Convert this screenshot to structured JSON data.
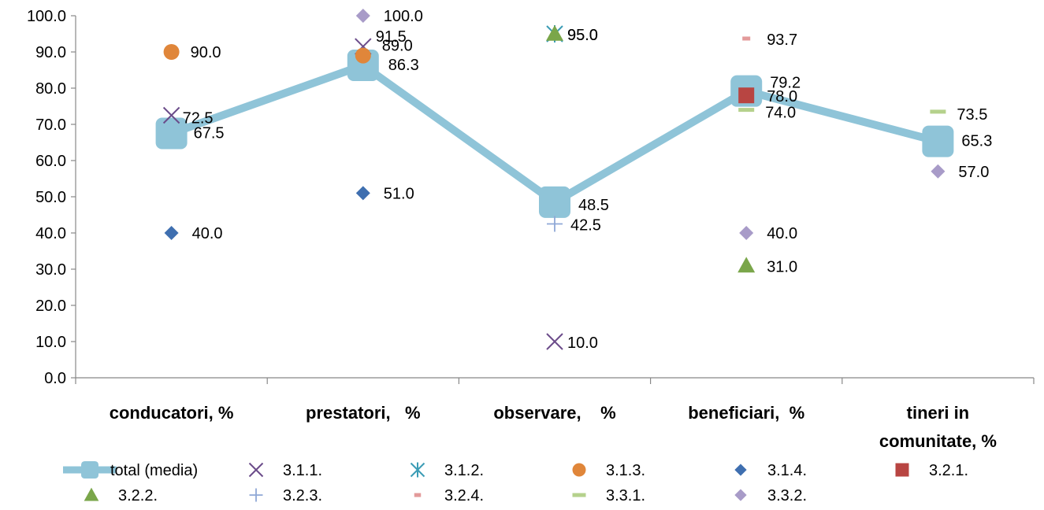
{
  "chart_data": {
    "type": "line",
    "title": "",
    "xlabel": "",
    "ylabel": "",
    "ylim": [
      0,
      100
    ],
    "yticks": [
      "0.0",
      "10.0",
      "20.0",
      "30.0",
      "40.0",
      "50.0",
      "60.0",
      "70.0",
      "80.0",
      "90.0",
      "100.0"
    ],
    "categories": [
      [
        "conducatori, %"
      ],
      [
        "prestatori,   %"
      ],
      [
        "observare,    %"
      ],
      [
        "beneficiari,  %"
      ],
      [
        "tineri in",
        "comunitate, %"
      ]
    ],
    "legend_position": "bottom",
    "series": [
      {
        "name": "total (media)",
        "marker": "square-line",
        "color": "#8fc4d8",
        "values": [
          67.5,
          86.3,
          48.5,
          79.2,
          65.3
        ],
        "labels": [
          "67.5",
          "86.3",
          "48.5",
          "79.2",
          "65.3"
        ]
      },
      {
        "name": "3.1.1.",
        "marker": "x",
        "color": "#6b4c8a",
        "values": [
          72.5,
          91.5,
          10.0,
          null,
          null
        ],
        "labels": [
          "72.5",
          "91.5",
          "10.0",
          "",
          ""
        ]
      },
      {
        "name": "3.1.2.",
        "marker": "asterisk",
        "color": "#3b9cb5",
        "values": [
          null,
          null,
          95.0,
          null,
          null
        ],
        "labels": [
          "",
          "",
          "95.0",
          "",
          ""
        ]
      },
      {
        "name": "3.1.3.",
        "marker": "circle",
        "color": "#e0863a",
        "values": [
          90.0,
          89.0,
          null,
          null,
          null
        ],
        "labels": [
          "90.0",
          "89.0",
          "",
          "",
          ""
        ]
      },
      {
        "name": "3.1.4.",
        "marker": "diamond",
        "color": "#3f6fb0",
        "values": [
          40.0,
          51.0,
          null,
          null,
          null
        ],
        "labels": [
          "40.0",
          "51.0",
          "",
          "",
          ""
        ]
      },
      {
        "name": "3.2.1.",
        "marker": "square",
        "color": "#b84542",
        "values": [
          null,
          null,
          null,
          78.0,
          null
        ],
        "labels": [
          "",
          "",
          "",
          "78.0",
          ""
        ]
      },
      {
        "name": "3.2.2.",
        "marker": "triangle",
        "color": "#7aa64a",
        "values": [
          null,
          null,
          95.0,
          31.0,
          null
        ],
        "labels": [
          "",
          "",
          "95.0",
          "31.0",
          ""
        ]
      },
      {
        "name": "3.2.3.",
        "marker": "plus",
        "color": "#8fa8d6",
        "values": [
          null,
          null,
          42.5,
          null,
          null
        ],
        "labels": [
          "",
          "",
          "42.5",
          "",
          ""
        ]
      },
      {
        "name": "3.2.4.",
        "marker": "dash",
        "color": "#e39a9a",
        "values": [
          null,
          null,
          null,
          93.7,
          null
        ],
        "labels": [
          "",
          "",
          "",
          "93.7",
          ""
        ]
      },
      {
        "name": "3.3.1.",
        "marker": "dash",
        "color": "#b5d18c",
        "values": [
          null,
          null,
          null,
          74.0,
          73.5
        ],
        "labels": [
          "",
          "",
          "",
          "74.0",
          "73.5"
        ]
      },
      {
        "name": "3.3.2.",
        "marker": "diamond",
        "color": "#a89bc8",
        "values": [
          null,
          100.0,
          null,
          40.0,
          57.0
        ],
        "labels": [
          "",
          "100.0",
          "",
          "40.0",
          "57.0"
        ]
      }
    ]
  }
}
